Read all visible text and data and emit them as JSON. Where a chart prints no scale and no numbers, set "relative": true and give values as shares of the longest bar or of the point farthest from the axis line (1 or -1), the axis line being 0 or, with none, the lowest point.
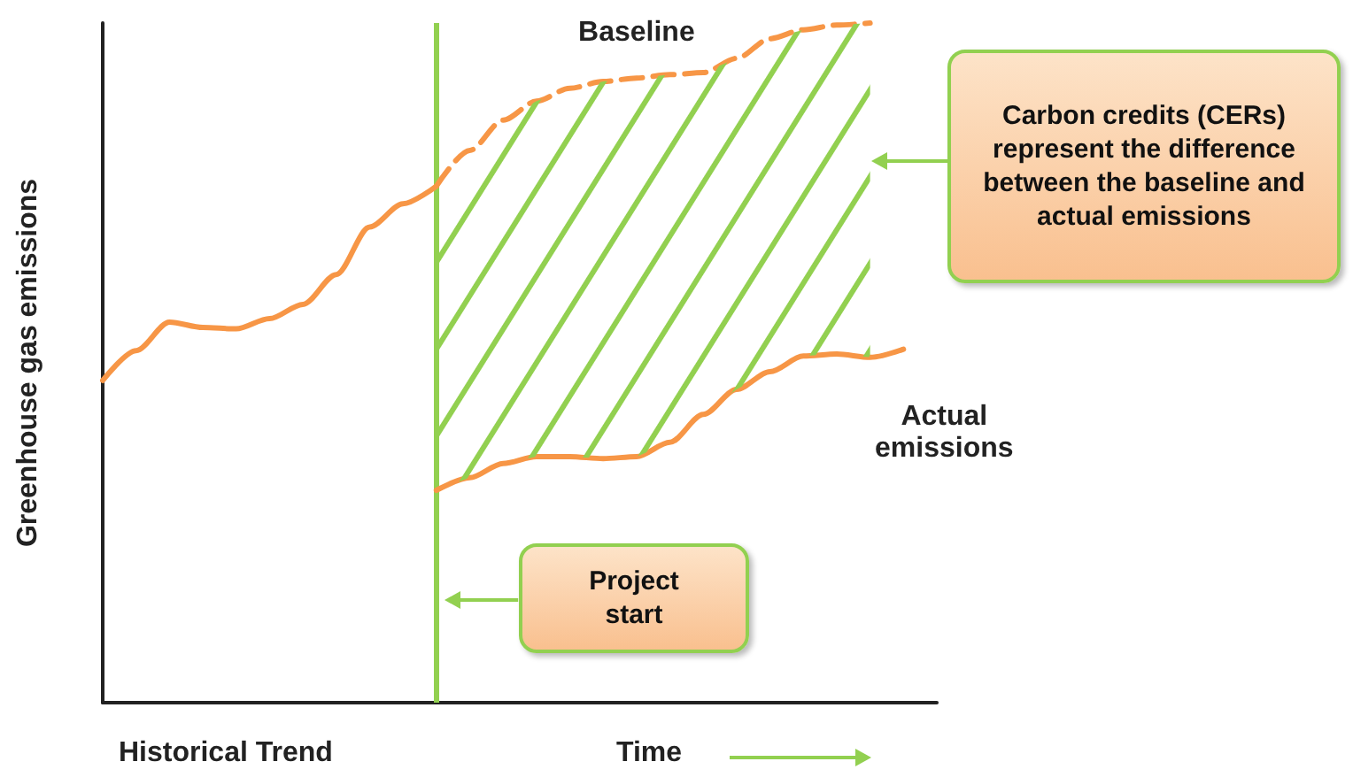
{
  "chart_data": {
    "type": "line",
    "relative": true,
    "ylabel": "Greenhouse gas emissions",
    "xlabel": "Time",
    "grid": false,
    "marker": "none",
    "categories": [
      null,
      null,
      null,
      null,
      null,
      null,
      null,
      null,
      null,
      null,
      null,
      null,
      null,
      null,
      null,
      null,
      null,
      null,
      null,
      null,
      null,
      null,
      null,
      null,
      null,
      null
    ],
    "series": [
      {
        "color": "#f79646",
        "line_style": "solid",
        "values": [
          0.474,
          0.518,
          0.56,
          0.552,
          0.55,
          0.565,
          0.586,
          0.63,
          0.7,
          0.734,
          0.76,
          null,
          null,
          null,
          null,
          null,
          null,
          null,
          null,
          null,
          null,
          null,
          null,
          null,
          null,
          null
        ]
      },
      {
        "name": "Baseline",
        "color": "#f79646",
        "line_style": "dashed",
        "values": [
          null,
          null,
          null,
          null,
          null,
          null,
          null,
          null,
          null,
          null,
          0.76,
          0.8125,
          0.857,
          0.885,
          0.904,
          0.914,
          0.919,
          0.924,
          0.927,
          0.948,
          0.977,
          0.99,
          0.997,
          1,
          null,
          null
        ]
      },
      {
        "name": "Actual emissions",
        "color": "#f79646",
        "line_style": "solid",
        "values": [
          null,
          null,
          null,
          null,
          null,
          null,
          null,
          null,
          null,
          null,
          0.3125,
          0.331,
          0.352,
          0.362,
          0.362,
          0.359,
          0.362,
          0.383,
          0.424,
          0.461,
          0.487,
          0.51,
          0.513,
          0.508,
          0.52,
          null
        ]
      }
    ],
    "annotations": [
      "Historical Trend",
      "Project start",
      "Carbon credits (CERs) represent the difference between the baseline and actual emissions"
    ]
  }
}
